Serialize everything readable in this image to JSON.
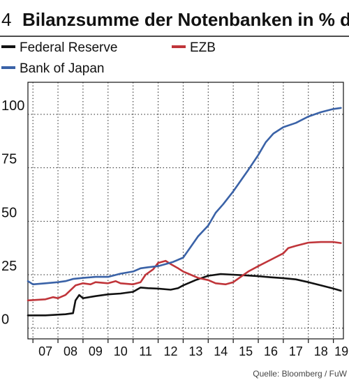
{
  "figure_number": "4",
  "source": "Quelle: Bloomberg / FuW",
  "chart_data": {
    "type": "line",
    "title": "Bilanzsumme der Notenbanken in % des Bip",
    "xlabel": "",
    "ylabel": "",
    "xlim": [
      2006.8,
      2019.4
    ],
    "ylim": [
      -5,
      115
    ],
    "x_ticks": [
      2007,
      2008,
      2009,
      2010,
      2011,
      2012,
      2013,
      2014,
      2015,
      2016,
      2017,
      2018,
      2019
    ],
    "x_tick_labels": [
      "07",
      "08",
      "09",
      "10",
      "11",
      "12",
      "13",
      "14",
      "15",
      "16",
      "17",
      "18",
      "19"
    ],
    "y_ticks": [
      0,
      25,
      50,
      75,
      100
    ],
    "y_tick_labels": [
      "0",
      "25",
      "50",
      "75",
      "100"
    ],
    "grid": true,
    "legend_position": "top",
    "series": [
      {
        "name": "Federal Reserve",
        "color": "#111111",
        "points": [
          [
            2006.8,
            6
          ],
          [
            2007.5,
            6
          ],
          [
            2008.3,
            6.5
          ],
          [
            2008.6,
            7
          ],
          [
            2008.7,
            13
          ],
          [
            2008.85,
            15.5
          ],
          [
            2009.0,
            14
          ],
          [
            2009.5,
            15
          ],
          [
            2010.0,
            15.8
          ],
          [
            2010.5,
            16.2
          ],
          [
            2011.0,
            17
          ],
          [
            2011.3,
            19
          ],
          [
            2011.6,
            18.7
          ],
          [
            2012.0,
            18.5
          ],
          [
            2012.5,
            18
          ],
          [
            2012.8,
            18.7
          ],
          [
            2013.0,
            20
          ],
          [
            2013.5,
            22.5
          ],
          [
            2014.0,
            24.5
          ],
          [
            2014.5,
            25.3
          ],
          [
            2015.0,
            25
          ],
          [
            2015.5,
            24.7
          ],
          [
            2016.0,
            24.3
          ],
          [
            2016.5,
            23.8
          ],
          [
            2017.0,
            23.4
          ],
          [
            2017.5,
            22.8
          ],
          [
            2018.0,
            21.5
          ],
          [
            2018.5,
            20
          ],
          [
            2019.0,
            18.5
          ],
          [
            2019.3,
            17.5
          ]
        ]
      },
      {
        "name": "EZB",
        "color": "#c0353a",
        "points": [
          [
            2006.8,
            13
          ],
          [
            2007.5,
            13.5
          ],
          [
            2007.8,
            14.5
          ],
          [
            2008.0,
            14
          ],
          [
            2008.3,
            15.5
          ],
          [
            2008.7,
            20
          ],
          [
            2009.0,
            21
          ],
          [
            2009.3,
            20.5
          ],
          [
            2009.5,
            21.5
          ],
          [
            2010.0,
            21
          ],
          [
            2010.3,
            22
          ],
          [
            2010.5,
            21
          ],
          [
            2011.0,
            20.5
          ],
          [
            2011.3,
            21.5
          ],
          [
            2011.5,
            25
          ],
          [
            2011.8,
            27.5
          ],
          [
            2012.0,
            30.5
          ],
          [
            2012.3,
            31.5
          ],
          [
            2012.5,
            30
          ],
          [
            2012.8,
            28
          ],
          [
            2013.0,
            26.5
          ],
          [
            2013.3,
            25
          ],
          [
            2013.6,
            23.5
          ],
          [
            2014.0,
            22.5
          ],
          [
            2014.3,
            21
          ],
          [
            2014.7,
            20.5
          ],
          [
            2015.0,
            21.5
          ],
          [
            2015.3,
            24
          ],
          [
            2015.6,
            26.5
          ],
          [
            2016.0,
            29
          ],
          [
            2016.5,
            32
          ],
          [
            2017.0,
            35
          ],
          [
            2017.2,
            37.5
          ],
          [
            2017.5,
            38.5
          ],
          [
            2018.0,
            40
          ],
          [
            2018.5,
            40.3
          ],
          [
            2019.0,
            40.3
          ],
          [
            2019.3,
            39.8
          ]
        ]
      },
      {
        "name": "Bank of Japan",
        "color": "#3a62a7",
        "points": [
          [
            2006.8,
            22
          ],
          [
            2007.0,
            20.5
          ],
          [
            2007.5,
            21
          ],
          [
            2008.0,
            21.5
          ],
          [
            2008.3,
            22
          ],
          [
            2008.6,
            23
          ],
          [
            2009.0,
            23.5
          ],
          [
            2009.5,
            24
          ],
          [
            2010.0,
            24
          ],
          [
            2010.5,
            25.5
          ],
          [
            2011.0,
            26.5
          ],
          [
            2011.3,
            28
          ],
          [
            2011.6,
            28.5
          ],
          [
            2012.0,
            29
          ],
          [
            2012.3,
            30
          ],
          [
            2012.6,
            31
          ],
          [
            2013.0,
            33
          ],
          [
            2013.3,
            38
          ],
          [
            2013.6,
            43
          ],
          [
            2014.0,
            48
          ],
          [
            2014.3,
            54
          ],
          [
            2014.6,
            58
          ],
          [
            2015.0,
            64
          ],
          [
            2015.3,
            69
          ],
          [
            2015.6,
            74
          ],
          [
            2016.0,
            81
          ],
          [
            2016.3,
            87
          ],
          [
            2016.6,
            91
          ],
          [
            2017.0,
            94
          ],
          [
            2017.5,
            96
          ],
          [
            2018.0,
            99
          ],
          [
            2018.5,
            101
          ],
          [
            2019.0,
            102.5
          ],
          [
            2019.3,
            103
          ]
        ]
      }
    ]
  }
}
